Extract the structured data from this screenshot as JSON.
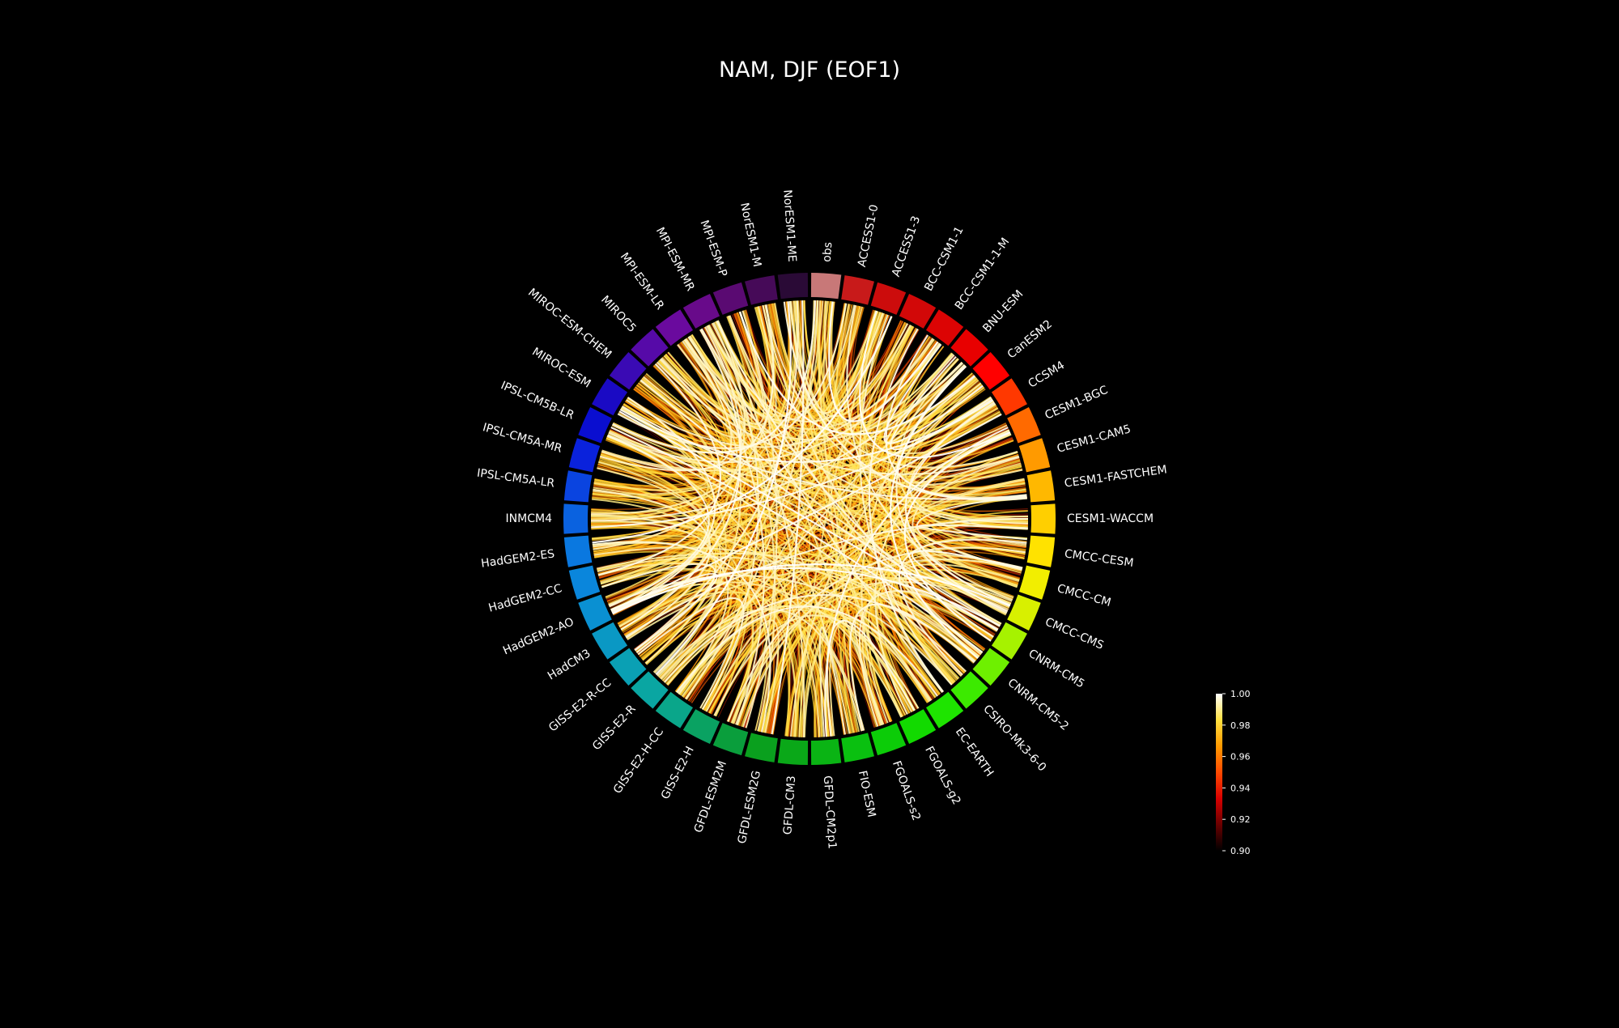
{
  "chart_data": {
    "type": "chord",
    "title": "NAM, DJF (EOF1)",
    "nodes": [
      {
        "name": "obs",
        "color": "#c87878"
      },
      {
        "name": "ACCESS1-0",
        "color": "#c81a1a"
      },
      {
        "name": "ACCESS1-3",
        "color": "#cc0c0c"
      },
      {
        "name": "BCC-CSM1-1",
        "color": "#d20808"
      },
      {
        "name": "BCC-CSM1-1-M",
        "color": "#dc0404"
      },
      {
        "name": "BNU-ESM",
        "color": "#e80000"
      },
      {
        "name": "CanESM2",
        "color": "#ff0000"
      },
      {
        "name": "CCSM4",
        "color": "#ff3800"
      },
      {
        "name": "CESM1-BGC",
        "color": "#ff6a00"
      },
      {
        "name": "CESM1-CAM5",
        "color": "#ff9a00"
      },
      {
        "name": "CESM1-FASTCHEM",
        "color": "#ffb800"
      },
      {
        "name": "CESM1-WACCM",
        "color": "#ffcf00"
      },
      {
        "name": "CMCC-CESM",
        "color": "#ffe200"
      },
      {
        "name": "CMCC-CM",
        "color": "#f2ee00"
      },
      {
        "name": "CMCC-CMS",
        "color": "#d8f000"
      },
      {
        "name": "CNRM-CM5",
        "color": "#a6f200"
      },
      {
        "name": "CNRM-CM5-2",
        "color": "#6ef000"
      },
      {
        "name": "CSIRO-Mk3-6-0",
        "color": "#3cea00"
      },
      {
        "name": "EC-EARTH",
        "color": "#1ee400"
      },
      {
        "name": "FGOALS-g2",
        "color": "#12da00"
      },
      {
        "name": "FGOALS-s2",
        "color": "#0ccc08"
      },
      {
        "name": "FIO-ESM",
        "color": "#0ac010"
      },
      {
        "name": "GFDL-CM2p1",
        "color": "#0ab414"
      },
      {
        "name": "GFDL-CM3",
        "color": "#0aa818"
      },
      {
        "name": "GFDL-ESM2G",
        "color": "#0aa01e"
      },
      {
        "name": "GFDL-ESM2M",
        "color": "#0a9e3c"
      },
      {
        "name": "GISS-E2-H",
        "color": "#0aa262"
      },
      {
        "name": "GISS-E2-H-CC",
        "color": "#0aa68a"
      },
      {
        "name": "GISS-E2-R",
        "color": "#0aa6a2"
      },
      {
        "name": "GISS-E2-R-CC",
        "color": "#0aa0b4"
      },
      {
        "name": "HadCM3",
        "color": "#0a98c4"
      },
      {
        "name": "HadGEM2-AO",
        "color": "#0a90d2"
      },
      {
        "name": "HadGEM2-CC",
        "color": "#0a86dc"
      },
      {
        "name": "HadGEM2-ES",
        "color": "#0a78e0"
      },
      {
        "name": "INMCM4",
        "color": "#0a62e0"
      },
      {
        "name": "IPSL-CM5A-LR",
        "color": "#0a44e0"
      },
      {
        "name": "IPSL-CM5A-MR",
        "color": "#0a22dc"
      },
      {
        "name": "IPSL-CM5B-LR",
        "color": "#0a0ed0"
      },
      {
        "name": "MIROC-ESM",
        "color": "#1a0ac4"
      },
      {
        "name": "MIROC-ESM-CHEM",
        "color": "#3a0ab4"
      },
      {
        "name": "MIROC5",
        "color": "#560aa8"
      },
      {
        "name": "MPI-ESM-LR",
        "color": "#6a0a9e"
      },
      {
        "name": "MPI-ESM-MR",
        "color": "#680a8a"
      },
      {
        "name": "MPI-ESM-P",
        "color": "#5a0a72"
      },
      {
        "name": "NorESM1-M",
        "color": "#460a58"
      },
      {
        "name": "NorESM1-ME",
        "color": "#2a0a36"
      }
    ],
    "link_value_range": [
      0.9,
      1.0
    ],
    "colorbar": {
      "min": 0.9,
      "max": 1.0,
      "ticks": [
        "1.00",
        "0.98",
        "0.96",
        "0.94",
        "0.92",
        "0.90"
      ],
      "colormap": [
        "#000000",
        "#6a0000",
        "#d80000",
        "#ff4a00",
        "#ff9a00",
        "#ffe040",
        "#ffffff"
      ]
    }
  }
}
